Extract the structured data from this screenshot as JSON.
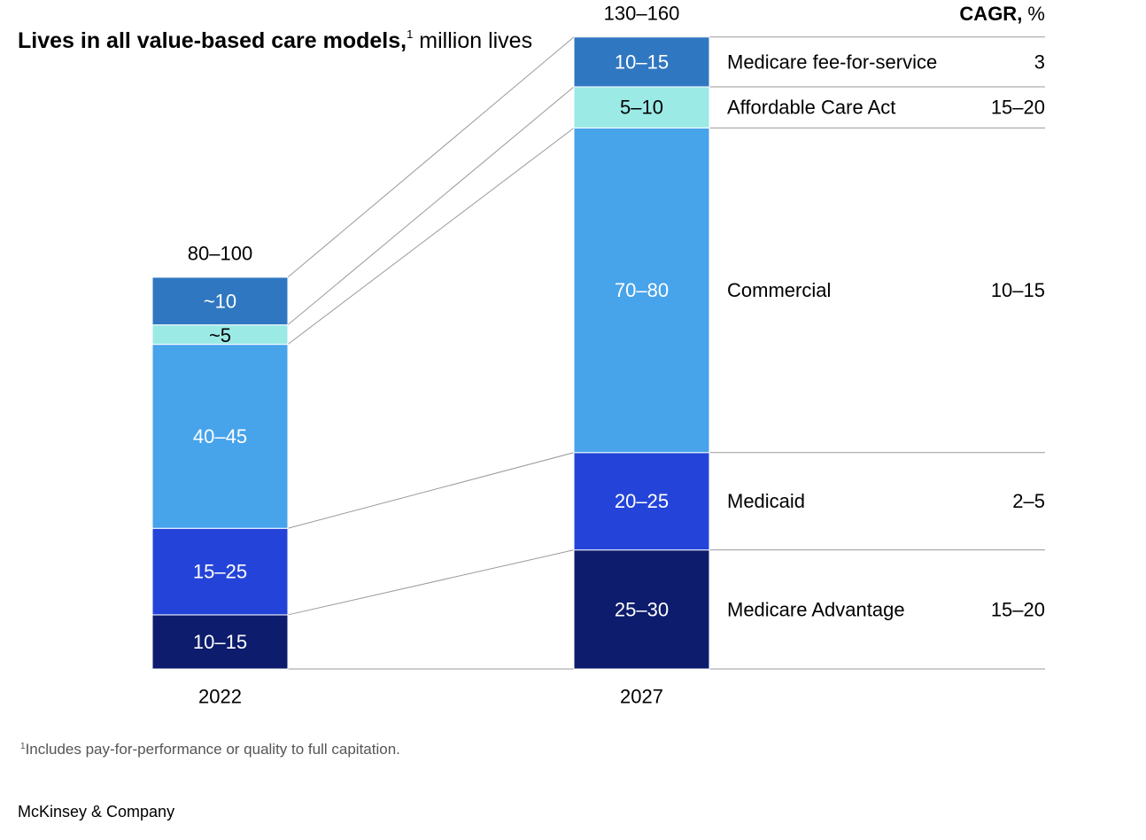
{
  "title": {
    "bold": "Lives in all value-based care models,",
    "footnote_marker": "1",
    "unit": " million lives"
  },
  "footnote": {
    "marker": "1",
    "text": "Includes pay-for-performance or quality to full capitation."
  },
  "source": "McKinsey & Company",
  "chart_data": {
    "type": "bar",
    "stacked": true,
    "ylabel": "million lives",
    "categories": [
      "2022",
      "2027"
    ],
    "totals": [
      "80–100",
      "130–160"
    ],
    "series": [
      {
        "name": "Medicare Advantage",
        "color": "#0D1C6C",
        "values": [
          12.5,
          27.5
        ],
        "labels": [
          "10–15",
          "25–30"
        ],
        "cagr": "15–20"
      },
      {
        "name": "Medicaid",
        "color": "#2444D9",
        "values": [
          20,
          22.5
        ],
        "labels": [
          "15–25",
          "20–25"
        ],
        "cagr": "2–5"
      },
      {
        "name": "Commercial",
        "color": "#47A3EA",
        "values": [
          42.5,
          75
        ],
        "labels": [
          "40–45",
          "70–80"
        ],
        "cagr": "10–15"
      },
      {
        "name": "Affordable Care Act",
        "color": "#9BEAE6",
        "values": [
          4.5,
          9.5
        ],
        "labels": [
          "~5",
          "5–10"
        ],
        "cagr": "15–20"
      },
      {
        "name": "Medicare fee-for-service",
        "color": "#3077C1",
        "values": [
          11,
          11.5
        ],
        "labels": [
          "~10",
          "10–15"
        ],
        "cagr": "3"
      }
    ],
    "cagr_header": {
      "bold": "CAGR,",
      "unit": " %"
    }
  }
}
